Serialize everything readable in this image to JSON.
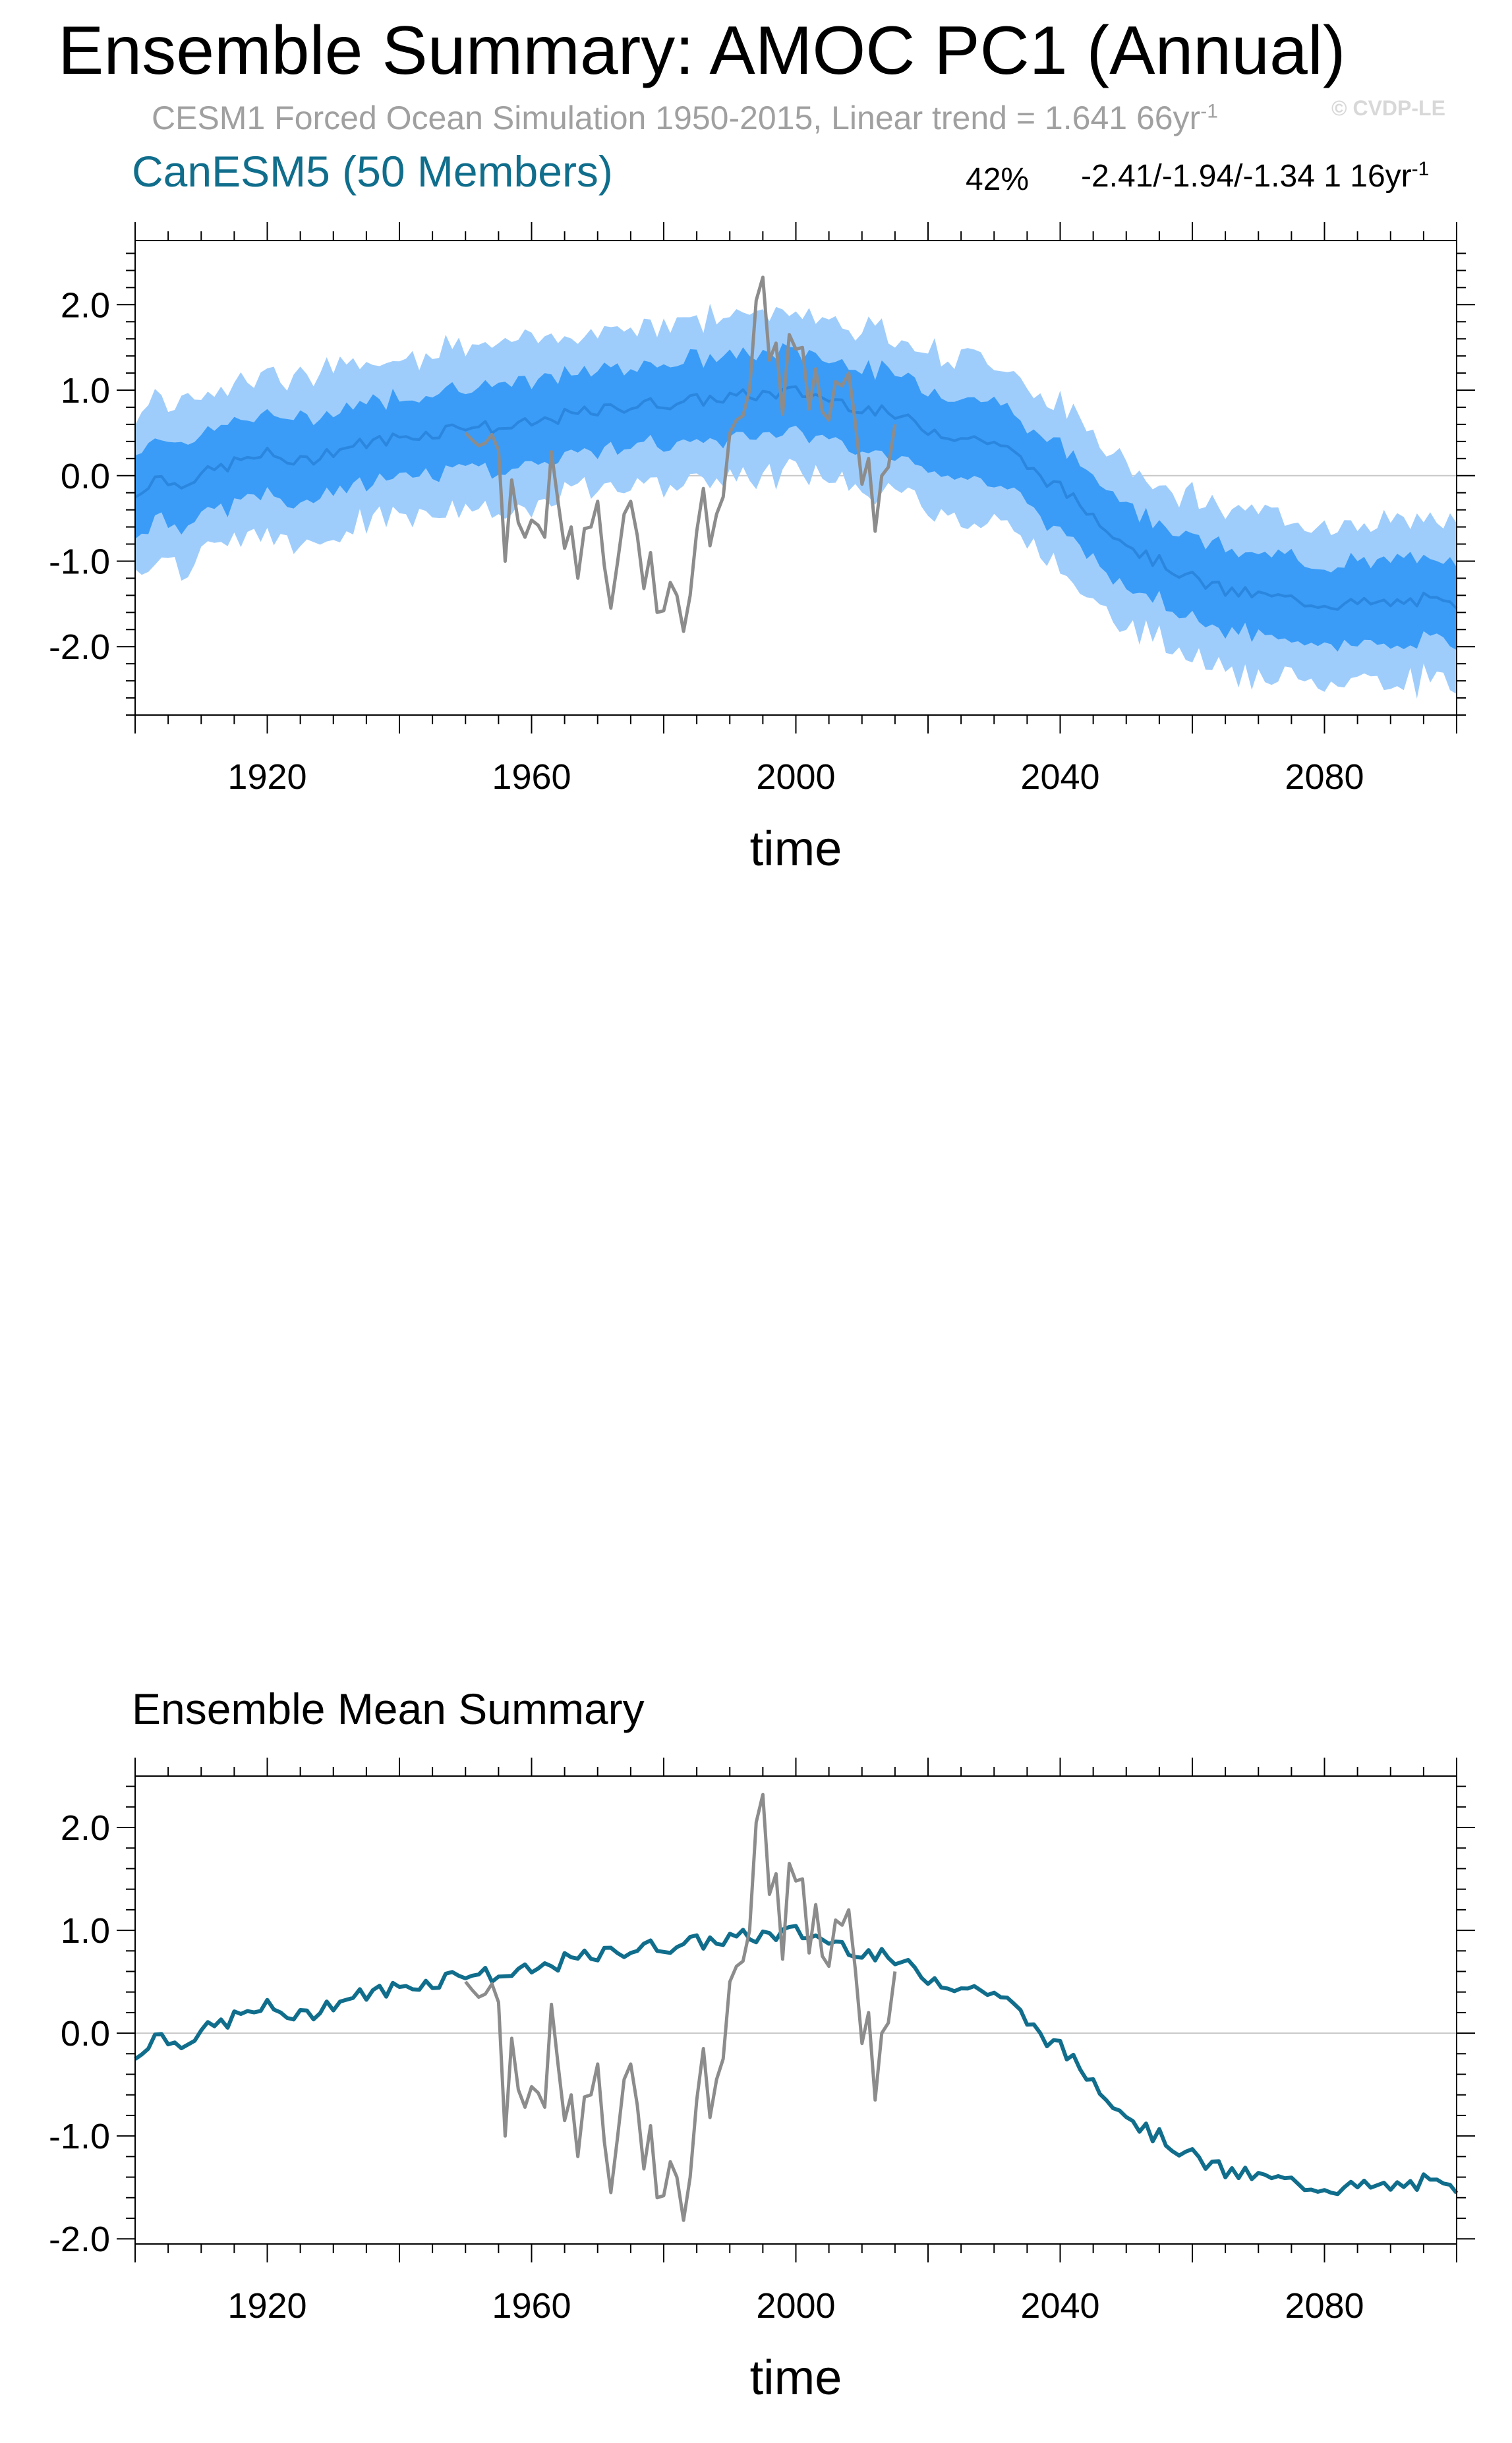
{
  "header": {
    "title": "Ensemble Summary: AMOC PC1 (Annual)",
    "subtitle": "CESM1 Forced Ocean Simulation 1950-2015, Linear trend = 1.641 66yr",
    "subtitle_exp": "-1",
    "copyright": "© CVDP-LE",
    "model_label": "CanESM5 (50 Members)",
    "pct_label": "42%",
    "trend_label": "-2.41/-1.94/-1.34 1 16yr",
    "trend_exp": "-1"
  },
  "colors": {
    "outer_band": "#9fcdfb",
    "inner_band": "#3a9cf7",
    "mean_line_top": "#2a86de",
    "mean_line_bottom": "#106e8c",
    "obs_line": "#8c8c8c"
  },
  "chart_data": [
    {
      "type": "area",
      "name": "ensemble-spread",
      "xlabel": "time",
      "ylabel": "",
      "xlim": [
        1900,
        2100
      ],
      "ylim": [
        -2.8,
        2.75
      ],
      "xticks": [
        1920,
        1960,
        2000,
        2040,
        2080
      ],
      "xtick_labels": [
        "1920",
        "1960",
        "2000",
        "2040",
        "2080"
      ],
      "yticks": [
        2.0,
        1.0,
        0.0,
        -1.0,
        -2.0
      ],
      "ytick_labels": [
        "2.0",
        "1.0",
        "0.0",
        "-1.0",
        "-2.0"
      ],
      "zero_line": true,
      "series": [
        {
          "name": "ensemble mean",
          "kind": "mean"
        },
        {
          "name": "ensemble 25-75%",
          "kind": "band",
          "halfwidth": 0.48
        },
        {
          "name": "ensemble range",
          "kind": "band",
          "halfwidth": 0.95
        },
        {
          "name": "observations (CESM1 Forced Ocean)",
          "kind": "obs"
        }
      ]
    },
    {
      "type": "line",
      "name": "ensemble-mean",
      "title": "Ensemble Mean Summary",
      "xlabel": "time",
      "ylabel": "",
      "xlim": [
        1900,
        2100
      ],
      "ylim": [
        -2.05,
        2.5
      ],
      "xticks": [
        1920,
        1960,
        2000,
        2040,
        2080
      ],
      "xtick_labels": [
        "1920",
        "1960",
        "2000",
        "2040",
        "2080"
      ],
      "yticks": [
        2.0,
        1.0,
        0.0,
        -1.0,
        -2.0
      ],
      "ytick_labels": [
        "2.0",
        "1.0",
        "0.0",
        "-1.0",
        "-2.0"
      ],
      "zero_line": true
    }
  ],
  "series_values": {
    "mean_keys": [
      [
        1900,
        -0.25
      ],
      [
        1903,
        0.0
      ],
      [
        1906,
        -0.1
      ],
      [
        1910,
        0.0
      ],
      [
        1915,
        0.15
      ],
      [
        1920,
        0.25
      ],
      [
        1925,
        0.15
      ],
      [
        1930,
        0.3
      ],
      [
        1935,
        0.38
      ],
      [
        1940,
        0.45
      ],
      [
        1945,
        0.5
      ],
      [
        1950,
        0.6
      ],
      [
        1955,
        0.55
      ],
      [
        1960,
        0.6
      ],
      [
        1965,
        0.7
      ],
      [
        1970,
        0.75
      ],
      [
        1975,
        0.82
      ],
      [
        1980,
        0.85
      ],
      [
        1985,
        0.88
      ],
      [
        1990,
        0.92
      ],
      [
        1995,
        0.95
      ],
      [
        2000,
        0.98
      ],
      [
        2005,
        0.9
      ],
      [
        2010,
        0.8
      ],
      [
        2015,
        0.7
      ],
      [
        2020,
        0.55
      ],
      [
        2025,
        0.45
      ],
      [
        2030,
        0.4
      ],
      [
        2033,
        0.25
      ],
      [
        2036,
        0.05
      ],
      [
        2040,
        -0.15
      ],
      [
        2044,
        -0.4
      ],
      [
        2048,
        -0.65
      ],
      [
        2052,
        -0.9
      ],
      [
        2056,
        -1.05
      ],
      [
        2060,
        -1.2
      ],
      [
        2065,
        -1.35
      ],
      [
        2070,
        -1.4
      ],
      [
        2075,
        -1.45
      ],
      [
        2080,
        -1.5
      ],
      [
        2085,
        -1.5
      ],
      [
        2090,
        -1.5
      ],
      [
        2095,
        -1.45
      ],
      [
        2100,
        -1.55
      ]
    ],
    "obs": [
      [
        1950,
        0.5
      ],
      [
        1951,
        0.42
      ],
      [
        1952,
        0.35
      ],
      [
        1953,
        0.38
      ],
      [
        1954,
        0.48
      ],
      [
        1955,
        0.3
      ],
      [
        1956,
        -1.0
      ],
      [
        1957,
        -0.05
      ],
      [
        1958,
        -0.55
      ],
      [
        1959,
        -0.72
      ],
      [
        1960,
        -0.52
      ],
      [
        1961,
        -0.58
      ],
      [
        1962,
        -0.72
      ],
      [
        1963,
        0.28
      ],
      [
        1964,
        -0.3
      ],
      [
        1965,
        -0.85
      ],
      [
        1966,
        -0.6
      ],
      [
        1967,
        -1.2
      ],
      [
        1968,
        -0.62
      ],
      [
        1969,
        -0.6
      ],
      [
        1970,
        -0.3
      ],
      [
        1971,
        -1.05
      ],
      [
        1972,
        -1.55
      ],
      [
        1973,
        -1.02
      ],
      [
        1974,
        -0.45
      ],
      [
        1975,
        -0.3
      ],
      [
        1976,
        -0.7
      ],
      [
        1977,
        -1.32
      ],
      [
        1978,
        -0.9
      ],
      [
        1979,
        -1.6
      ],
      [
        1980,
        -1.58
      ],
      [
        1981,
        -1.25
      ],
      [
        1982,
        -1.4
      ],
      [
        1983,
        -1.82
      ],
      [
        1984,
        -1.4
      ],
      [
        1985,
        -0.65
      ],
      [
        1986,
        -0.15
      ],
      [
        1987,
        -0.82
      ],
      [
        1988,
        -0.45
      ],
      [
        1989,
        -0.25
      ],
      [
        1990,
        0.5
      ],
      [
        1991,
        0.65
      ],
      [
        1992,
        0.7
      ],
      [
        1993,
        1.0
      ],
      [
        1994,
        2.05
      ],
      [
        1995,
        2.32
      ],
      [
        1996,
        1.35
      ],
      [
        1997,
        1.55
      ],
      [
        1998,
        0.72
      ],
      [
        1999,
        1.65
      ],
      [
        2000,
        1.48
      ],
      [
        2001,
        1.5
      ],
      [
        2002,
        0.78
      ],
      [
        2003,
        1.25
      ],
      [
        2004,
        0.75
      ],
      [
        2005,
        0.65
      ],
      [
        2006,
        1.1
      ],
      [
        2007,
        1.05
      ],
      [
        2008,
        1.2
      ],
      [
        2009,
        0.62
      ],
      [
        2010,
        -0.1
      ],
      [
        2011,
        0.2
      ],
      [
        2012,
        -0.65
      ],
      [
        2013,
        0.0
      ],
      [
        2014,
        0.1
      ],
      [
        2015,
        0.6
      ]
    ]
  }
}
